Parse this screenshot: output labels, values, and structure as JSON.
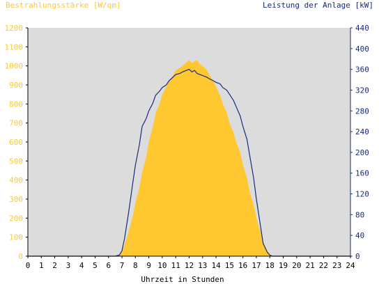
{
  "chart_data": {
    "type": "area",
    "title_left": "Bestrahlungsstärke [W/qm]",
    "title_right": "Leistung der Anlage [kW]",
    "xlabel": "Uhrzeit in Stunden",
    "x_ticks": [
      "0",
      "1",
      "2",
      "3",
      "4",
      "5",
      "6",
      "7",
      "8",
      "9",
      "10",
      "11",
      "12",
      "13",
      "14",
      "15",
      "16",
      "17",
      "18",
      "19",
      "20",
      "21",
      "22",
      "23",
      "24"
    ],
    "y_left_ticks": [
      "0",
      "100",
      "200",
      "300",
      "400",
      "500",
      "600",
      "700",
      "800",
      "900",
      "1000",
      "1100",
      "1200"
    ],
    "y_right_ticks": [
      "0",
      "40",
      "80",
      "120",
      "160",
      "200",
      "240",
      "280",
      "320",
      "360",
      "400",
      "440"
    ],
    "xlim": [
      0,
      24
    ],
    "ylim_left": [
      0,
      1200
    ],
    "ylim_right": [
      0,
      440
    ],
    "grid": false,
    "colors": {
      "plot_bg": "#dcdcdc",
      "irradiance": "#ffc830",
      "power": "#1a2a7a",
      "left_axis_text": "#ffc830",
      "right_axis_text": "#1a2a7a",
      "x_axis_text": "#000000"
    },
    "series": [
      {
        "kind": "area",
        "axis": "left",
        "x": [
          0,
          6.5,
          6.8,
          7.0,
          7.2,
          7.5,
          7.8,
          8.0,
          8.3,
          8.5,
          8.8,
          9.0,
          9.3,
          9.5,
          9.8,
          10.0,
          10.3,
          10.5,
          10.8,
          11.0,
          11.3,
          11.5,
          11.8,
          12.0,
          12.2,
          12.4,
          12.6,
          12.8,
          13.0,
          13.3,
          13.5,
          13.8,
          14.0,
          14.3,
          14.5,
          14.8,
          15.0,
          15.3,
          15.5,
          15.8,
          16.0,
          16.3,
          16.5,
          16.8,
          17.0,
          17.3,
          17.5,
          17.8,
          18.0,
          18.2,
          18.4,
          18.6,
          19.0,
          24
        ],
        "y": [
          0,
          0,
          5,
          20,
          60,
          130,
          210,
          280,
          360,
          440,
          520,
          600,
          680,
          750,
          800,
          850,
          890,
          920,
          950,
          975,
          990,
          1000,
          1020,
          1030,
          1015,
          1025,
          1030,
          1010,
          1000,
          980,
          955,
          920,
          890,
          845,
          800,
          755,
          700,
          650,
          600,
          545,
          480,
          410,
          340,
          270,
          200,
          130,
          75,
          30,
          8,
          2,
          0,
          0,
          0,
          0
        ]
      },
      {
        "kind": "line",
        "axis": "right",
        "x": [
          0,
          6.5,
          6.8,
          7.0,
          7.2,
          7.5,
          7.8,
          8.0,
          8.3,
          8.5,
          8.8,
          9.0,
          9.3,
          9.5,
          9.8,
          10.0,
          10.3,
          10.5,
          10.8,
          11.0,
          11.3,
          11.5,
          11.8,
          12.0,
          12.2,
          12.4,
          12.6,
          12.8,
          13.0,
          13.3,
          13.5,
          13.8,
          14.0,
          14.3,
          14.5,
          14.8,
          15.0,
          15.3,
          15.5,
          15.8,
          16.0,
          16.3,
          16.5,
          16.8,
          17.0,
          17.3,
          17.5,
          17.8,
          18.0,
          18.2,
          18.4,
          18.6,
          19.0,
          24
        ],
        "y": [
          0,
          0,
          2,
          10,
          35,
          85,
          140,
          175,
          215,
          250,
          265,
          280,
          295,
          310,
          318,
          325,
          330,
          338,
          345,
          350,
          352,
          355,
          358,
          360,
          355,
          358,
          352,
          350,
          348,
          345,
          342,
          338,
          335,
          332,
          325,
          320,
          312,
          300,
          288,
          270,
          250,
          225,
          195,
          150,
          110,
          60,
          25,
          8,
          2,
          0,
          0,
          0,
          0,
          0
        ]
      }
    ]
  }
}
